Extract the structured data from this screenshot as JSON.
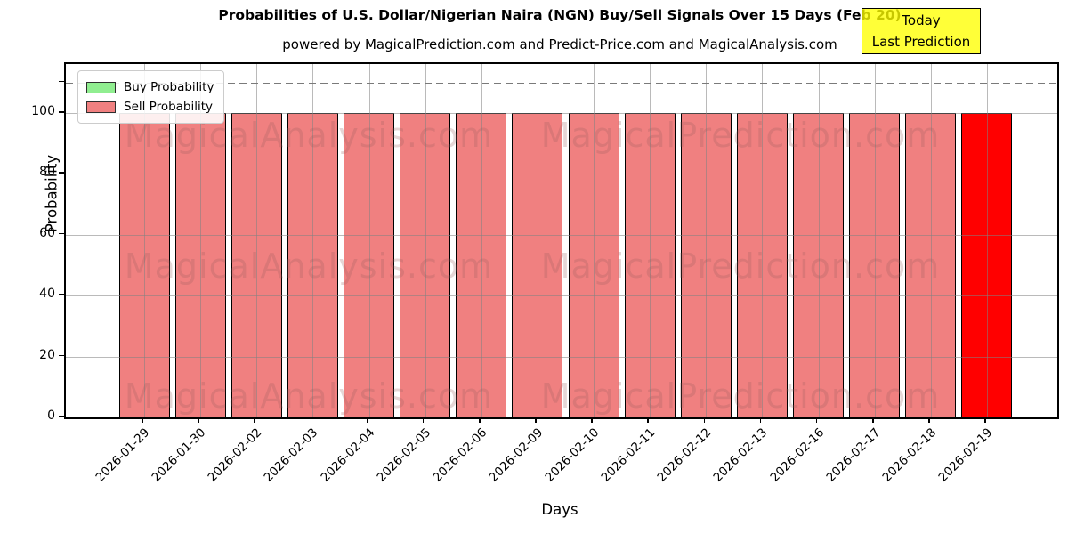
{
  "title": "Probabilities of U.S. Dollar/Nigerian Naira (NGN) Buy/Sell Signals Over 15 Days (Feb 20)",
  "subtitle": "powered by MagicalPrediction.com and Predict-Price.com and MagicalAnalysis.com",
  "legend": {
    "items": [
      {
        "label": "Buy Probability",
        "color": "#90EE90"
      },
      {
        "label": "Sell Probability",
        "color": "#F08080"
      }
    ]
  },
  "annotation": {
    "line1": "Today",
    "line2": "Last Prediction",
    "bg_color": "#FFFF00"
  },
  "axes": {
    "x_label": "Days",
    "y_label": "Probability",
    "y_ticks": [
      0,
      20,
      40,
      60,
      80,
      100
    ],
    "extra_unlabeled_y_tick": 110,
    "ylim": [
      0,
      116
    ],
    "grid": true,
    "dashed_line_y": 110
  },
  "watermarks": {
    "left": "MagicalAnalysis.com",
    "right": "MagicalPrediction.com"
  },
  "chart_data": {
    "type": "bar",
    "categories": [
      "2026-01-29",
      "2026-01-30",
      "2026-02-02",
      "2026-02-03",
      "2026-02-04",
      "2026-02-05",
      "2026-02-06",
      "2026-02-09",
      "2026-02-10",
      "2026-02-11",
      "2026-02-12",
      "2026-02-13",
      "2026-02-16",
      "2026-02-17",
      "2026-02-18",
      "2026-02-19"
    ],
    "series": [
      {
        "name": "Buy Probability",
        "values": [
          0,
          0,
          0,
          0,
          0,
          0,
          0,
          0,
          0,
          0,
          0,
          0,
          0,
          0,
          0,
          0
        ]
      },
      {
        "name": "Sell Probability",
        "values": [
          100,
          100,
          100,
          100,
          100,
          100,
          100,
          100,
          100,
          100,
          100,
          100,
          100,
          100,
          100,
          100
        ]
      }
    ],
    "sell_color": "#F08080",
    "buy_color": "#90EE90",
    "highlight_index": 15,
    "highlight_color": "#FF0000",
    "title": "Probabilities of U.S. Dollar/Nigerian Naira (NGN) Buy/Sell Signals Over 15 Days (Feb 20)",
    "xlabel": "Days",
    "ylabel": "Probability",
    "ylim": [
      0,
      116
    ],
    "legend_position": "upper left"
  }
}
